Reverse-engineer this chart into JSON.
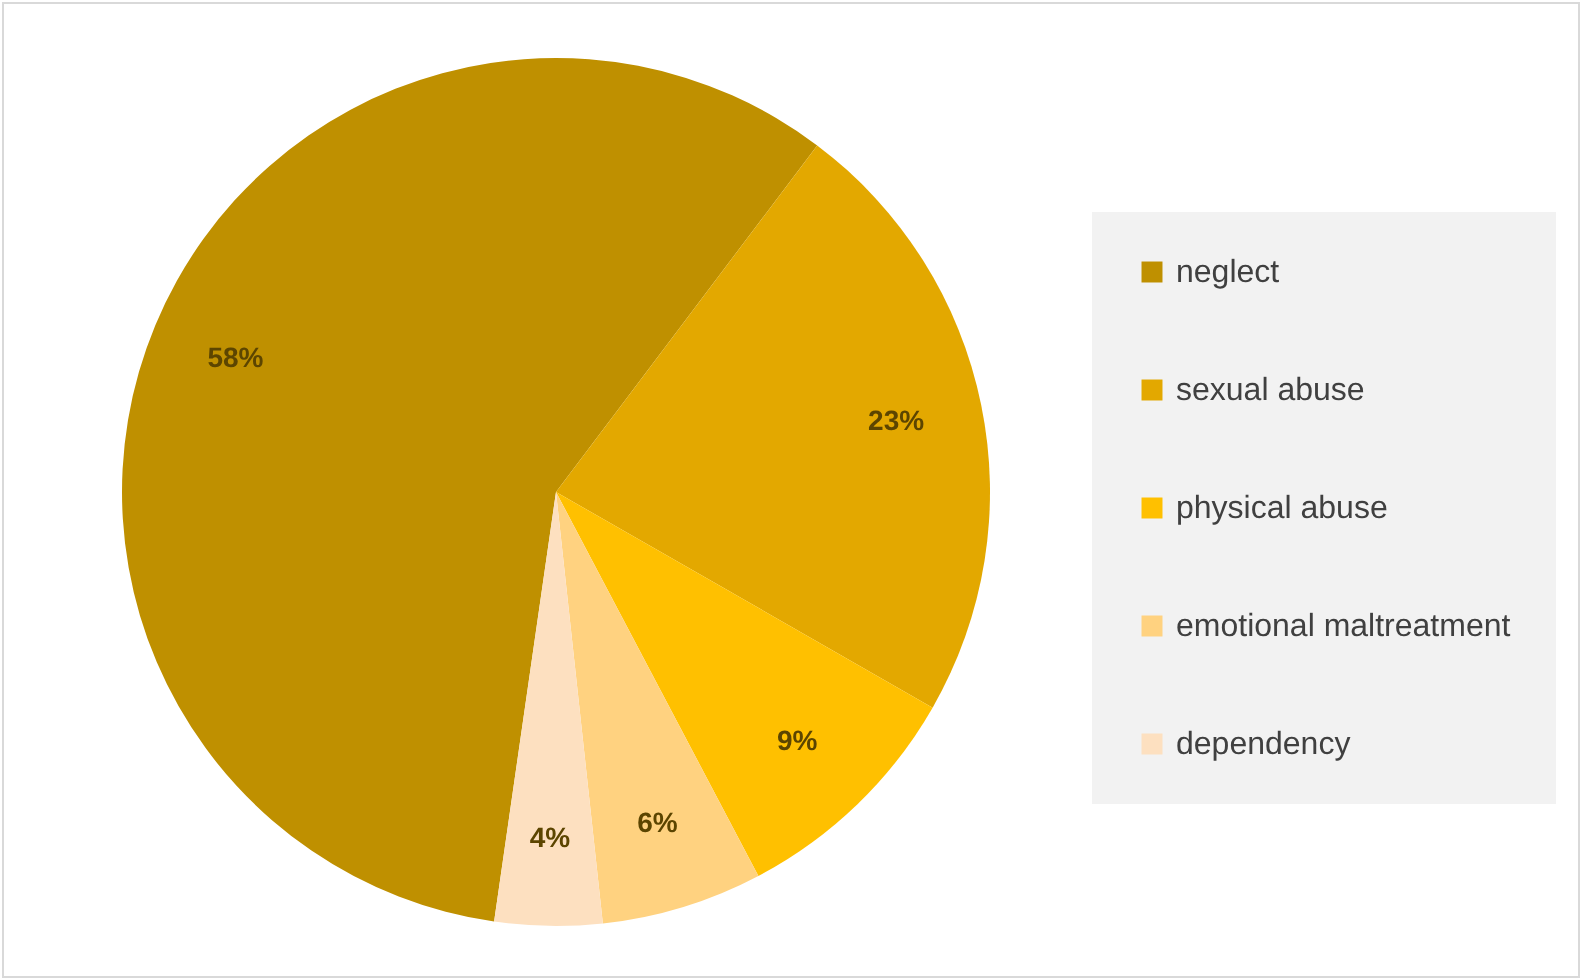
{
  "chart_data": {
    "type": "pie",
    "categories": [
      "neglect",
      "sexual abuse",
      "physical abuse",
      "emotional maltreatment",
      "dependency"
    ],
    "values": [
      58,
      23,
      9,
      6,
      4
    ],
    "colors": [
      "#bf9000",
      "#e3a800",
      "#ffc000",
      "#ffd280",
      "#fde0c0"
    ],
    "value_labels": [
      "58%",
      "23%",
      "9%",
      "6%",
      "4%"
    ],
    "legend": "right"
  }
}
